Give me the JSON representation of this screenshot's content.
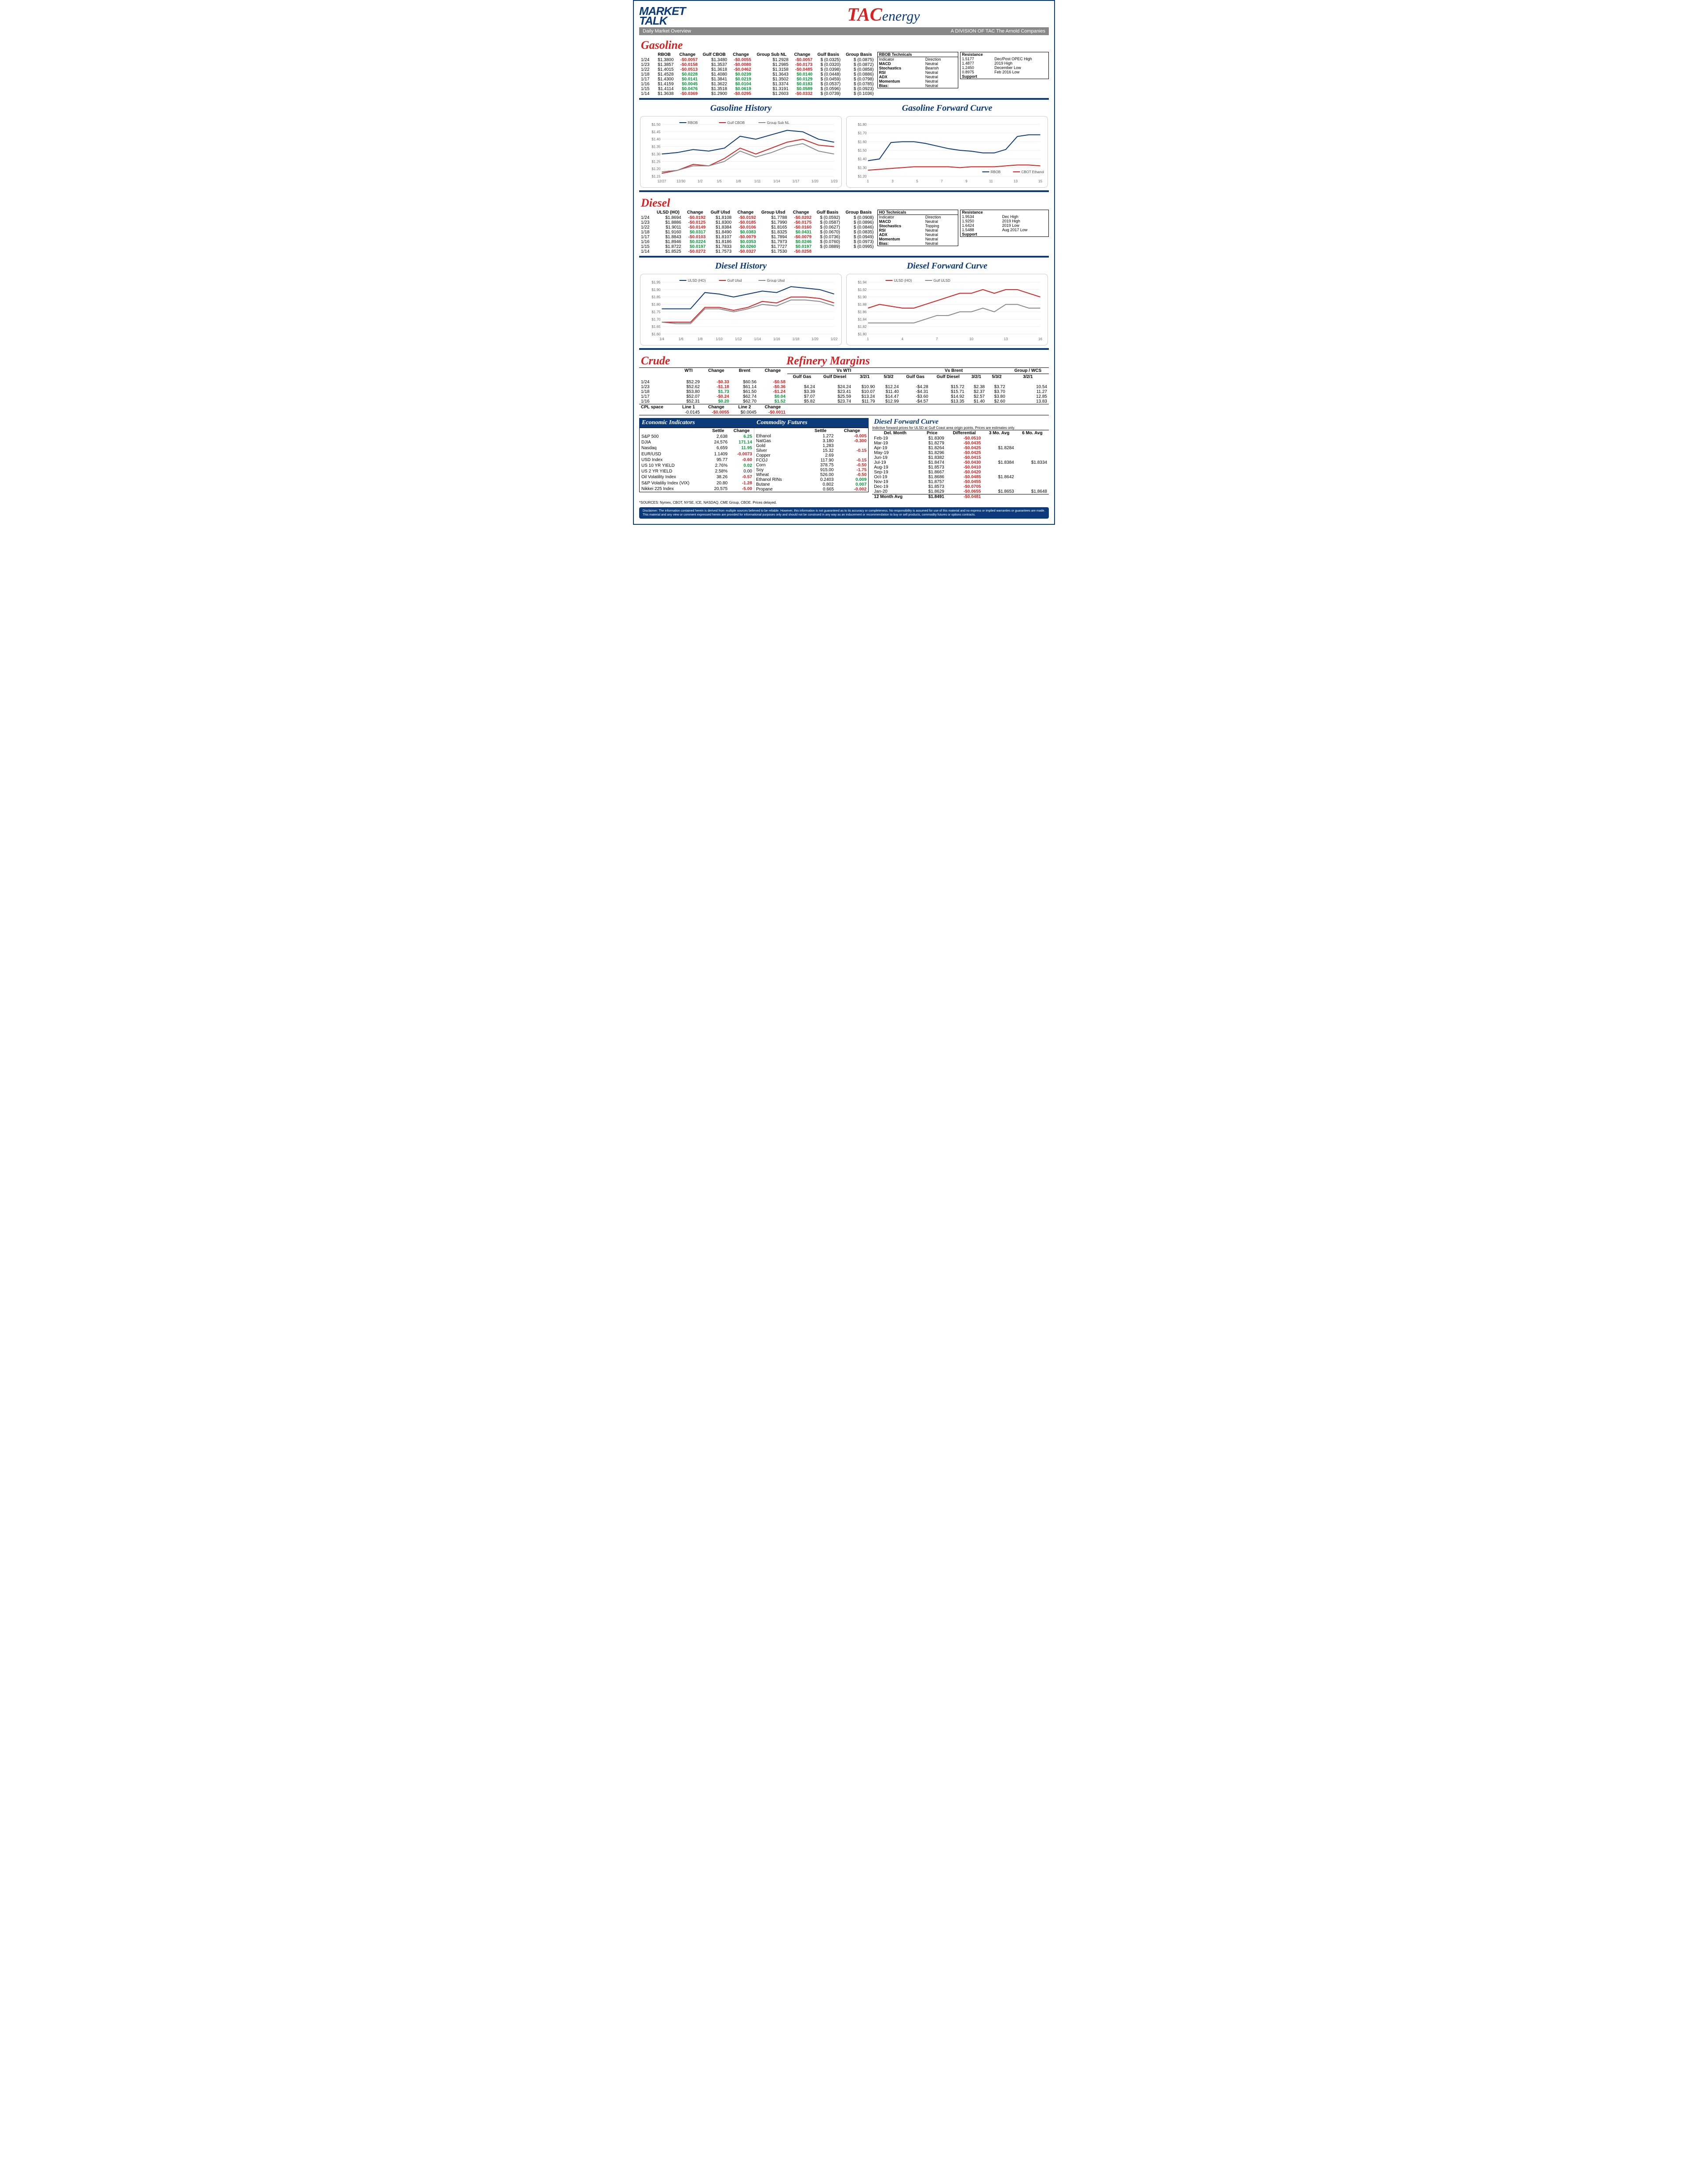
{
  "header": {
    "market": "MARKET",
    "talk": "TALK",
    "subtitle_left": "Daily Market Overview",
    "tac": "TAC",
    "energy": "energy",
    "subtitle_right": "A DIVISION OF TAC The Arnold Companies"
  },
  "gasoline": {
    "title": "Gasoline",
    "headers": [
      "",
      "RBOB",
      "Change",
      "Gulf CBOB",
      "Change",
      "Group Sub NL",
      "Change",
      "Gulf Basis",
      "Group Basis"
    ],
    "rows": [
      [
        "1/24",
        "$1.3800",
        "-$0.0057",
        "$1.3480",
        "-$0.0055",
        "$1.2928",
        "-$0.0057",
        "$ (0.0325)",
        "$   (0.0875)"
      ],
      [
        "1/23",
        "$1.3857",
        "-$0.0158",
        "$1.3537",
        "-$0.0080",
        "$1.2985",
        "-$0.0173",
        "$ (0.0320)",
        "$   (0.0872)"
      ],
      [
        "1/22",
        "$1.4015",
        "-$0.0513",
        "$1.3618",
        "-$0.0462",
        "$1.3158",
        "-$0.0485",
        "$ (0.0398)",
        "$   (0.0858)"
      ],
      [
        "1/18",
        "$1.4528",
        "$0.0228",
        "$1.4080",
        "$0.0239",
        "$1.3643",
        "$0.0140",
        "$ (0.0448)",
        "$   (0.0886)"
      ],
      [
        "1/17",
        "$1.4300",
        "$0.0141",
        "$1.3841",
        "$0.0219",
        "$1.3502",
        "$0.0129",
        "$ (0.0459)",
        "$   (0.0798)"
      ],
      [
        "1/16",
        "$1.4159",
        "$0.0045",
        "$1.3622",
        "$0.0104",
        "$1.3374",
        "$0.0183",
        "$ (0.0537)",
        "$   (0.0785)"
      ],
      [
        "1/15",
        "$1.4114",
        "$0.0476",
        "$1.3518",
        "$0.0619",
        "$1.3191",
        "$0.0589",
        "$ (0.0596)",
        "$   (0.0923)"
      ],
      [
        "1/14",
        "$1.3638",
        "-$0.0369",
        "$1.2900",
        "-$0.0295",
        "$1.2603",
        "-$0.0332",
        "$ (0.0739)",
        "$   (0.1036)"
      ]
    ],
    "tech": {
      "header": "RBOB Technicals",
      "cols": [
        "Indicator",
        "Direction"
      ],
      "rows": [
        [
          "MACD",
          "Neutral"
        ],
        [
          "Stochastics",
          "Bearish"
        ],
        [
          "RSI",
          "Neutral"
        ],
        [
          "ADX",
          "Neutral"
        ],
        [
          "Momentum",
          "Neutral"
        ],
        [
          "Bias:",
          "Neutral"
        ]
      ]
    },
    "res": {
      "rows": [
        [
          "Resistance",
          ""
        ],
        [
          "1.5177",
          "Dec/Post OPEC High"
        ],
        [
          "1.4877",
          "2019 High"
        ],
        [
          "1.2450",
          "December Low"
        ],
        [
          "0.8975",
          "Feb 2016 Low"
        ],
        [
          "Support",
          ""
        ]
      ]
    },
    "hist_title": "Gasoline History",
    "fwd_title": "Gasoline Forward Curve",
    "hist_chart": {
      "yticks": [
        "$1.50",
        "$1.45",
        "$1.40",
        "$1.35",
        "$1.30",
        "$1.25",
        "$1.20",
        "$1.15"
      ],
      "xticks": [
        "12/27",
        "12/30",
        "1/2",
        "1/5",
        "1/8",
        "1/11",
        "1/14",
        "1/17",
        "1/20",
        "1/23"
      ],
      "series": [
        {
          "name": "RBOB",
          "color": "#0a3a7a",
          "pts": [
            1.3,
            1.31,
            1.33,
            1.32,
            1.34,
            1.42,
            1.4,
            1.43,
            1.46,
            1.45,
            1.4,
            1.38
          ]
        },
        {
          "name": "Gulf CBOB",
          "color": "#d92020",
          "pts": [
            1.17,
            1.19,
            1.23,
            1.22,
            1.27,
            1.34,
            1.3,
            1.34,
            1.38,
            1.4,
            1.36,
            1.35
          ]
        },
        {
          "name": "Group Sub NL",
          "color": "#888",
          "pts": [
            1.18,
            1.19,
            1.22,
            1.22,
            1.25,
            1.32,
            1.28,
            1.31,
            1.35,
            1.37,
            1.32,
            1.3
          ]
        }
      ],
      "ymin": 1.15,
      "ymax": 1.5
    },
    "fwd_chart": {
      "yticks": [
        "$1.80",
        "$1.70",
        "$1.60",
        "$1.50",
        "$1.40",
        "$1.30",
        "$1.20"
      ],
      "xticks": [
        "1",
        "3",
        "5",
        "7",
        "9",
        "11",
        "13",
        "15"
      ],
      "series": [
        {
          "name": "RBOB",
          "color": "#0a3a7a",
          "pts": [
            1.38,
            1.4,
            1.59,
            1.6,
            1.6,
            1.58,
            1.55,
            1.52,
            1.5,
            1.49,
            1.47,
            1.47,
            1.51,
            1.66,
            1.68,
            1.68
          ]
        },
        {
          "name": "CBOT Ethanol",
          "color": "#d92020",
          "pts": [
            1.27,
            1.28,
            1.29,
            1.3,
            1.31,
            1.31,
            1.31,
            1.31,
            1.3,
            1.31,
            1.31,
            1.31,
            1.32,
            1.33,
            1.33,
            1.32
          ]
        }
      ],
      "ymin": 1.2,
      "ymax": 1.8
    }
  },
  "diesel": {
    "title": "Diesel",
    "headers": [
      "",
      "ULSD (HO)",
      "Change",
      "Gulf Ulsd",
      "Change",
      "Group Ulsd",
      "Change",
      "Gulf Basis",
      "Group Basis"
    ],
    "rows": [
      [
        "1/24",
        "$1.8694",
        "-$0.0192",
        "$1.8108",
        "-$0.0192",
        "$1.7788",
        "-$0.0202",
        "$ (0.0592)",
        "$   (0.0908)"
      ],
      [
        "1/23",
        "$1.8886",
        "-$0.0125",
        "$1.8300",
        "-$0.0185",
        "$1.7990",
        "-$0.0175",
        "$ (0.0587)",
        "$   (0.0896)"
      ],
      [
        "1/22",
        "$1.9011",
        "-$0.0149",
        "$1.8384",
        "-$0.0106",
        "$1.8165",
        "-$0.0160",
        "$ (0.0627)",
        "$   (0.0846)"
      ],
      [
        "1/18",
        "$1.9160",
        "$0.0317",
        "$1.8490",
        "$0.0383",
        "$1.8325",
        "$0.0431",
        "$ (0.0670)",
        "$   (0.0835)"
      ],
      [
        "1/17",
        "$1.8843",
        "-$0.0103",
        "$1.8107",
        "-$0.0079",
        "$1.7894",
        "-$0.0079",
        "$ (0.0736)",
        "$   (0.0949)"
      ],
      [
        "1/16",
        "$1.8946",
        "$0.0224",
        "$1.8186",
        "$0.0353",
        "$1.7973",
        "$0.0246",
        "$ (0.0760)",
        "$   (0.0973)"
      ],
      [
        "1/15",
        "$1.8722",
        "$0.0197",
        "$1.7833",
        "$0.0260",
        "$1.7727",
        "$0.0197",
        "$ (0.0889)",
        "$   (0.0995)"
      ],
      [
        "1/14",
        "$1.8525",
        "-$0.0272",
        "$1.7573",
        "-$0.0327",
        "$1.7530",
        "-$0.0258",
        "",
        ""
      ]
    ],
    "tech": {
      "header": "HO Technicals",
      "cols": [
        "Indicator",
        "Direction"
      ],
      "rows": [
        [
          "MACD",
          "Neutral"
        ],
        [
          "Stochastics",
          "Topping"
        ],
        [
          "RSI",
          "Neutral"
        ],
        [
          "ADX",
          "Neutral"
        ],
        [
          "Momentum",
          "Neutral"
        ],
        [
          "Bias:",
          "Neutral"
        ]
      ]
    },
    "res": {
      "rows": [
        [
          "Resistance",
          ""
        ],
        [
          "1.9534",
          "Dec High"
        ],
        [
          "1.9250",
          "2019 High"
        ],
        [
          "1.6424",
          "2019 Low"
        ],
        [
          "1.5488",
          "Aug 2017 Low"
        ],
        [
          "Support",
          ""
        ]
      ]
    },
    "hist_title": "Diesel History",
    "fwd_title": "Diesel Forward Curve",
    "hist_chart": {
      "yticks": [
        "$1.95",
        "$1.90",
        "$1.85",
        "$1.80",
        "$1.75",
        "$1.70",
        "$1.65",
        "$1.60"
      ],
      "xticks": [
        "1/4",
        "1/6",
        "1/8",
        "1/10",
        "1/12",
        "1/14",
        "1/16",
        "1/18",
        "1/20",
        "1/22"
      ],
      "series": [
        {
          "name": "ULSD (HO)",
          "color": "#0a3a7a",
          "pts": [
            1.77,
            1.77,
            1.77,
            1.88,
            1.87,
            1.85,
            1.87,
            1.89,
            1.88,
            1.92,
            1.91,
            1.9,
            1.87
          ]
        },
        {
          "name": "Gulf Ulsd",
          "color": "#d92020",
          "pts": [
            1.68,
            1.68,
            1.68,
            1.78,
            1.78,
            1.76,
            1.78,
            1.82,
            1.81,
            1.85,
            1.85,
            1.84,
            1.81
          ]
        },
        {
          "name": "Group Ulsd",
          "color": "#888",
          "pts": [
            1.68,
            1.67,
            1.67,
            1.77,
            1.77,
            1.75,
            1.77,
            1.8,
            1.79,
            1.83,
            1.83,
            1.82,
            1.79
          ]
        }
      ],
      "ymin": 1.6,
      "ymax": 1.95
    },
    "fwd_chart": {
      "yticks": [
        "$1.94",
        "$1.92",
        "$1.90",
        "$1.88",
        "$1.86",
        "$1.84",
        "$1.82",
        "$1.80"
      ],
      "xticks": [
        "1",
        "4",
        "7",
        "10",
        "13",
        "16"
      ],
      "series": [
        {
          "name": "ULSD (HO)",
          "color": "#d92020",
          "pts": [
            1.87,
            1.88,
            1.875,
            1.87,
            1.87,
            1.88,
            1.89,
            1.9,
            1.91,
            1.91,
            1.92,
            1.91,
            1.92,
            1.92,
            1.91,
            1.9
          ]
        },
        {
          "name": "Gulf ULSD",
          "color": "#888",
          "pts": [
            1.83,
            1.83,
            1.83,
            1.83,
            1.83,
            1.84,
            1.85,
            1.85,
            1.86,
            1.86,
            1.87,
            1.86,
            1.88,
            1.88,
            1.87,
            1.87
          ]
        }
      ],
      "ymin": 1.8,
      "ymax": 1.94
    }
  },
  "crude": {
    "title": "Crude",
    "headers": [
      "",
      "WTI",
      "Change",
      "Brent",
      "Change"
    ],
    "rows": [
      [
        "1/24",
        "$52.29",
        "-$0.33",
        "$60.56",
        "-$0.58"
      ],
      [
        "1/23",
        "$52.62",
        "-$1.18",
        "$61.14",
        "-$0.36"
      ],
      [
        "1/18",
        "$53.80",
        "$1.73",
        "$61.50",
        "-$1.24"
      ],
      [
        "1/17",
        "$52.07",
        "-$0.24",
        "$62.74",
        "$0.04"
      ],
      [
        "1/16",
        "$52.31",
        "$0.20",
        "$62.70",
        "$1.52"
      ]
    ],
    "cpl": {
      "label": "CPL space",
      "cols": [
        "Line 1",
        "Change",
        "Line 2",
        "Change"
      ],
      "vals": [
        "-0.0145",
        "-$0.0055",
        "$0.0045",
        "-$0.0011"
      ]
    }
  },
  "margins": {
    "title": "Refinery Margins",
    "wti_hdr": "Vs WTI",
    "brent_hdr": "Vs Brent",
    "wcs_hdr": "Group / WCS",
    "subcols": [
      "Gulf Gas",
      "Gulf Diesel",
      "3/2/1",
      "5/3/2",
      "Gulf Gas",
      "Gulf Diesel",
      "3/2/1",
      "5/3/2",
      "3/2/1"
    ],
    "rows": [
      [
        "",
        "",
        "",
        "",
        "",
        "",
        "",
        "",
        ""
      ],
      [
        "$4.24",
        "$24.24",
        "$10.90",
        "$12.24",
        "-$4.28",
        "$15.72",
        "$2.38",
        "$3.72",
        "10.54"
      ],
      [
        "$3.39",
        "$23.41",
        "$10.07",
        "$11.40",
        "-$4.31",
        "$15.71",
        "$2.37",
        "$3.70",
        "11.27"
      ],
      [
        "$7.07",
        "$25.59",
        "$13.24",
        "$14.47",
        "-$3.60",
        "$14.92",
        "$2.57",
        "$3.80",
        "12.85"
      ],
      [
        "$5.82",
        "$23.74",
        "$11.79",
        "$12.99",
        "-$4.57",
        "$13.35",
        "$1.40",
        "$2.60",
        "13.83"
      ]
    ]
  },
  "econ": {
    "title": "Economic Indicators",
    "cols": [
      "",
      "Settle",
      "Change"
    ],
    "rows": [
      [
        "S&P 500",
        "2,638",
        "6.25"
      ],
      [
        "DJIA",
        "24,576",
        "171.14"
      ],
      [
        "Nasdaq",
        "6,659",
        "11.95"
      ],
      [
        "",
        "",
        ""
      ],
      [
        "EUR/USD",
        "1.1409",
        "-0.0073"
      ],
      [
        "USD Index",
        "95.77",
        "-0.60"
      ],
      [
        "US 10 YR YIELD",
        "2.76%",
        "0.02"
      ],
      [
        "US 2 YR YIELD",
        "2.58%",
        "0.00"
      ],
      [
        "Oil Volatility Index",
        "38.26",
        "-0.57"
      ],
      [
        "S&P Volatiliy Index (VIX)",
        "20.80",
        "-1.28"
      ],
      [
        "Nikkei 225 Index",
        "20,575",
        "-5.00"
      ]
    ]
  },
  "comm": {
    "title": "Commodity Futures",
    "cols": [
      "",
      "Settle",
      "Change"
    ],
    "rows": [
      [
        "Ethanol",
        "1.272",
        "-0.005"
      ],
      [
        "NatGas",
        "3.180",
        "-0.300"
      ],
      [
        "Gold",
        "1,283",
        ""
      ],
      [
        "Silver",
        "15.32",
        "-0.15"
      ],
      [
        "Copper",
        "2.69",
        ""
      ],
      [
        "FCOJ",
        "117.90",
        "-0.15"
      ],
      [
        "Corn",
        "378.75",
        "-0.50"
      ],
      [
        "Soy",
        "915.00",
        "-1.75"
      ],
      [
        "Wheat",
        "526.00",
        "-0.50"
      ],
      [
        "Ethanol RINs",
        "0.2403",
        "0.009"
      ],
      [
        "Butane",
        "0.802",
        "0.007"
      ],
      [
        "Propane",
        "0.665",
        "-0.002"
      ]
    ]
  },
  "dfc": {
    "title": "Diesel Forward Curve",
    "note": "Indictive forward prices for ULSD at Gulf Coast area origin points.  Prices are estimates only.",
    "cols": [
      "Del. Month",
      "Price",
      "Differential",
      "3 Mo. Avg",
      "6 Mo. Avg"
    ],
    "rows": [
      [
        "Feb-19",
        "$1.8309",
        "-$0.0510",
        "",
        ""
      ],
      [
        "Mar-19",
        "$1.8279",
        "-$0.0435",
        "",
        ""
      ],
      [
        "Apr-19",
        "$1.8264",
        "-$0.0425",
        "$1.8284",
        ""
      ],
      [
        "May-19",
        "$1.8296",
        "-$0.0425",
        "",
        ""
      ],
      [
        "Jun-19",
        "$1.8382",
        "-$0.0415",
        "",
        ""
      ],
      [
        "Jul-19",
        "$1.8474",
        "-$0.0430",
        "$1.8384",
        "$1.8334"
      ],
      [
        "Aug-19",
        "$1.8573",
        "-$0.0410",
        "",
        ""
      ],
      [
        "Sep-19",
        "$1.8667",
        "-$0.0420",
        "",
        ""
      ],
      [
        "Oct-19",
        "$1.8686",
        "-$0.0485",
        "$1.8642",
        ""
      ],
      [
        "Nov-19",
        "$1.8757",
        "-$0.0455",
        "",
        ""
      ],
      [
        "Dec-19",
        "$1.8573",
        "-$0.0705",
        "",
        ""
      ],
      [
        "Jan-20",
        "$1.8629",
        "-$0.0655",
        "$1.8653",
        "$1.8648"
      ],
      [
        "12 Month Avg",
        "$1.8491",
        "-$0.0481",
        "",
        ""
      ]
    ]
  },
  "sources": "*SOURCES: Nymex, CBOT, NYSE, ICE, NASDAQ, CME Group, CBOE.   Prices delayed.",
  "disclaimer": "Disclaimer: The information contained herein is derived from multiple sources believed to be reliable. However, this information is not guaranteed as to its accuracy or completeness. No responsibility is assumed for use of this material and no express or implied warranties or guarantees are made. This material and any view or comment expressed herein are provided for informational purposes only and should not be construed in any way as an inducement or recommendation to buy or sell products, commodity futures or options contracts."
}
